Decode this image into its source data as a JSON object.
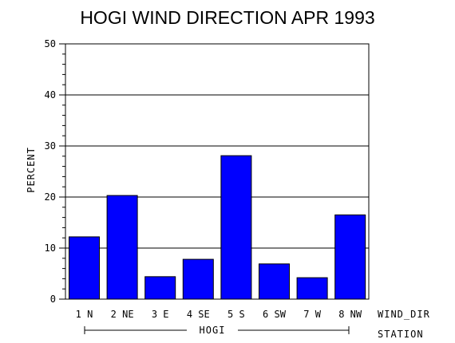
{
  "chart_data": {
    "type": "bar",
    "title": "HOGI WIND DIRECTION APR 1993",
    "ylabel": "PERCENT",
    "xlabel": "WIND_DIR",
    "group_axis_label": "STATION",
    "group_label": "HOGI",
    "categories": [
      "1 N",
      "2 NE",
      "3 E",
      "4 SE",
      "5 S",
      "6 SW",
      "7 W",
      "8 NW"
    ],
    "values": [
      12.2,
      20.3,
      4.4,
      7.8,
      28.1,
      6.9,
      4.2,
      16.5
    ],
    "ylim": [
      0,
      50
    ],
    "yticks": [
      "0",
      "10",
      "20",
      "30",
      "40",
      "50"
    ],
    "grid": true,
    "bar_color": "#0000ff"
  }
}
